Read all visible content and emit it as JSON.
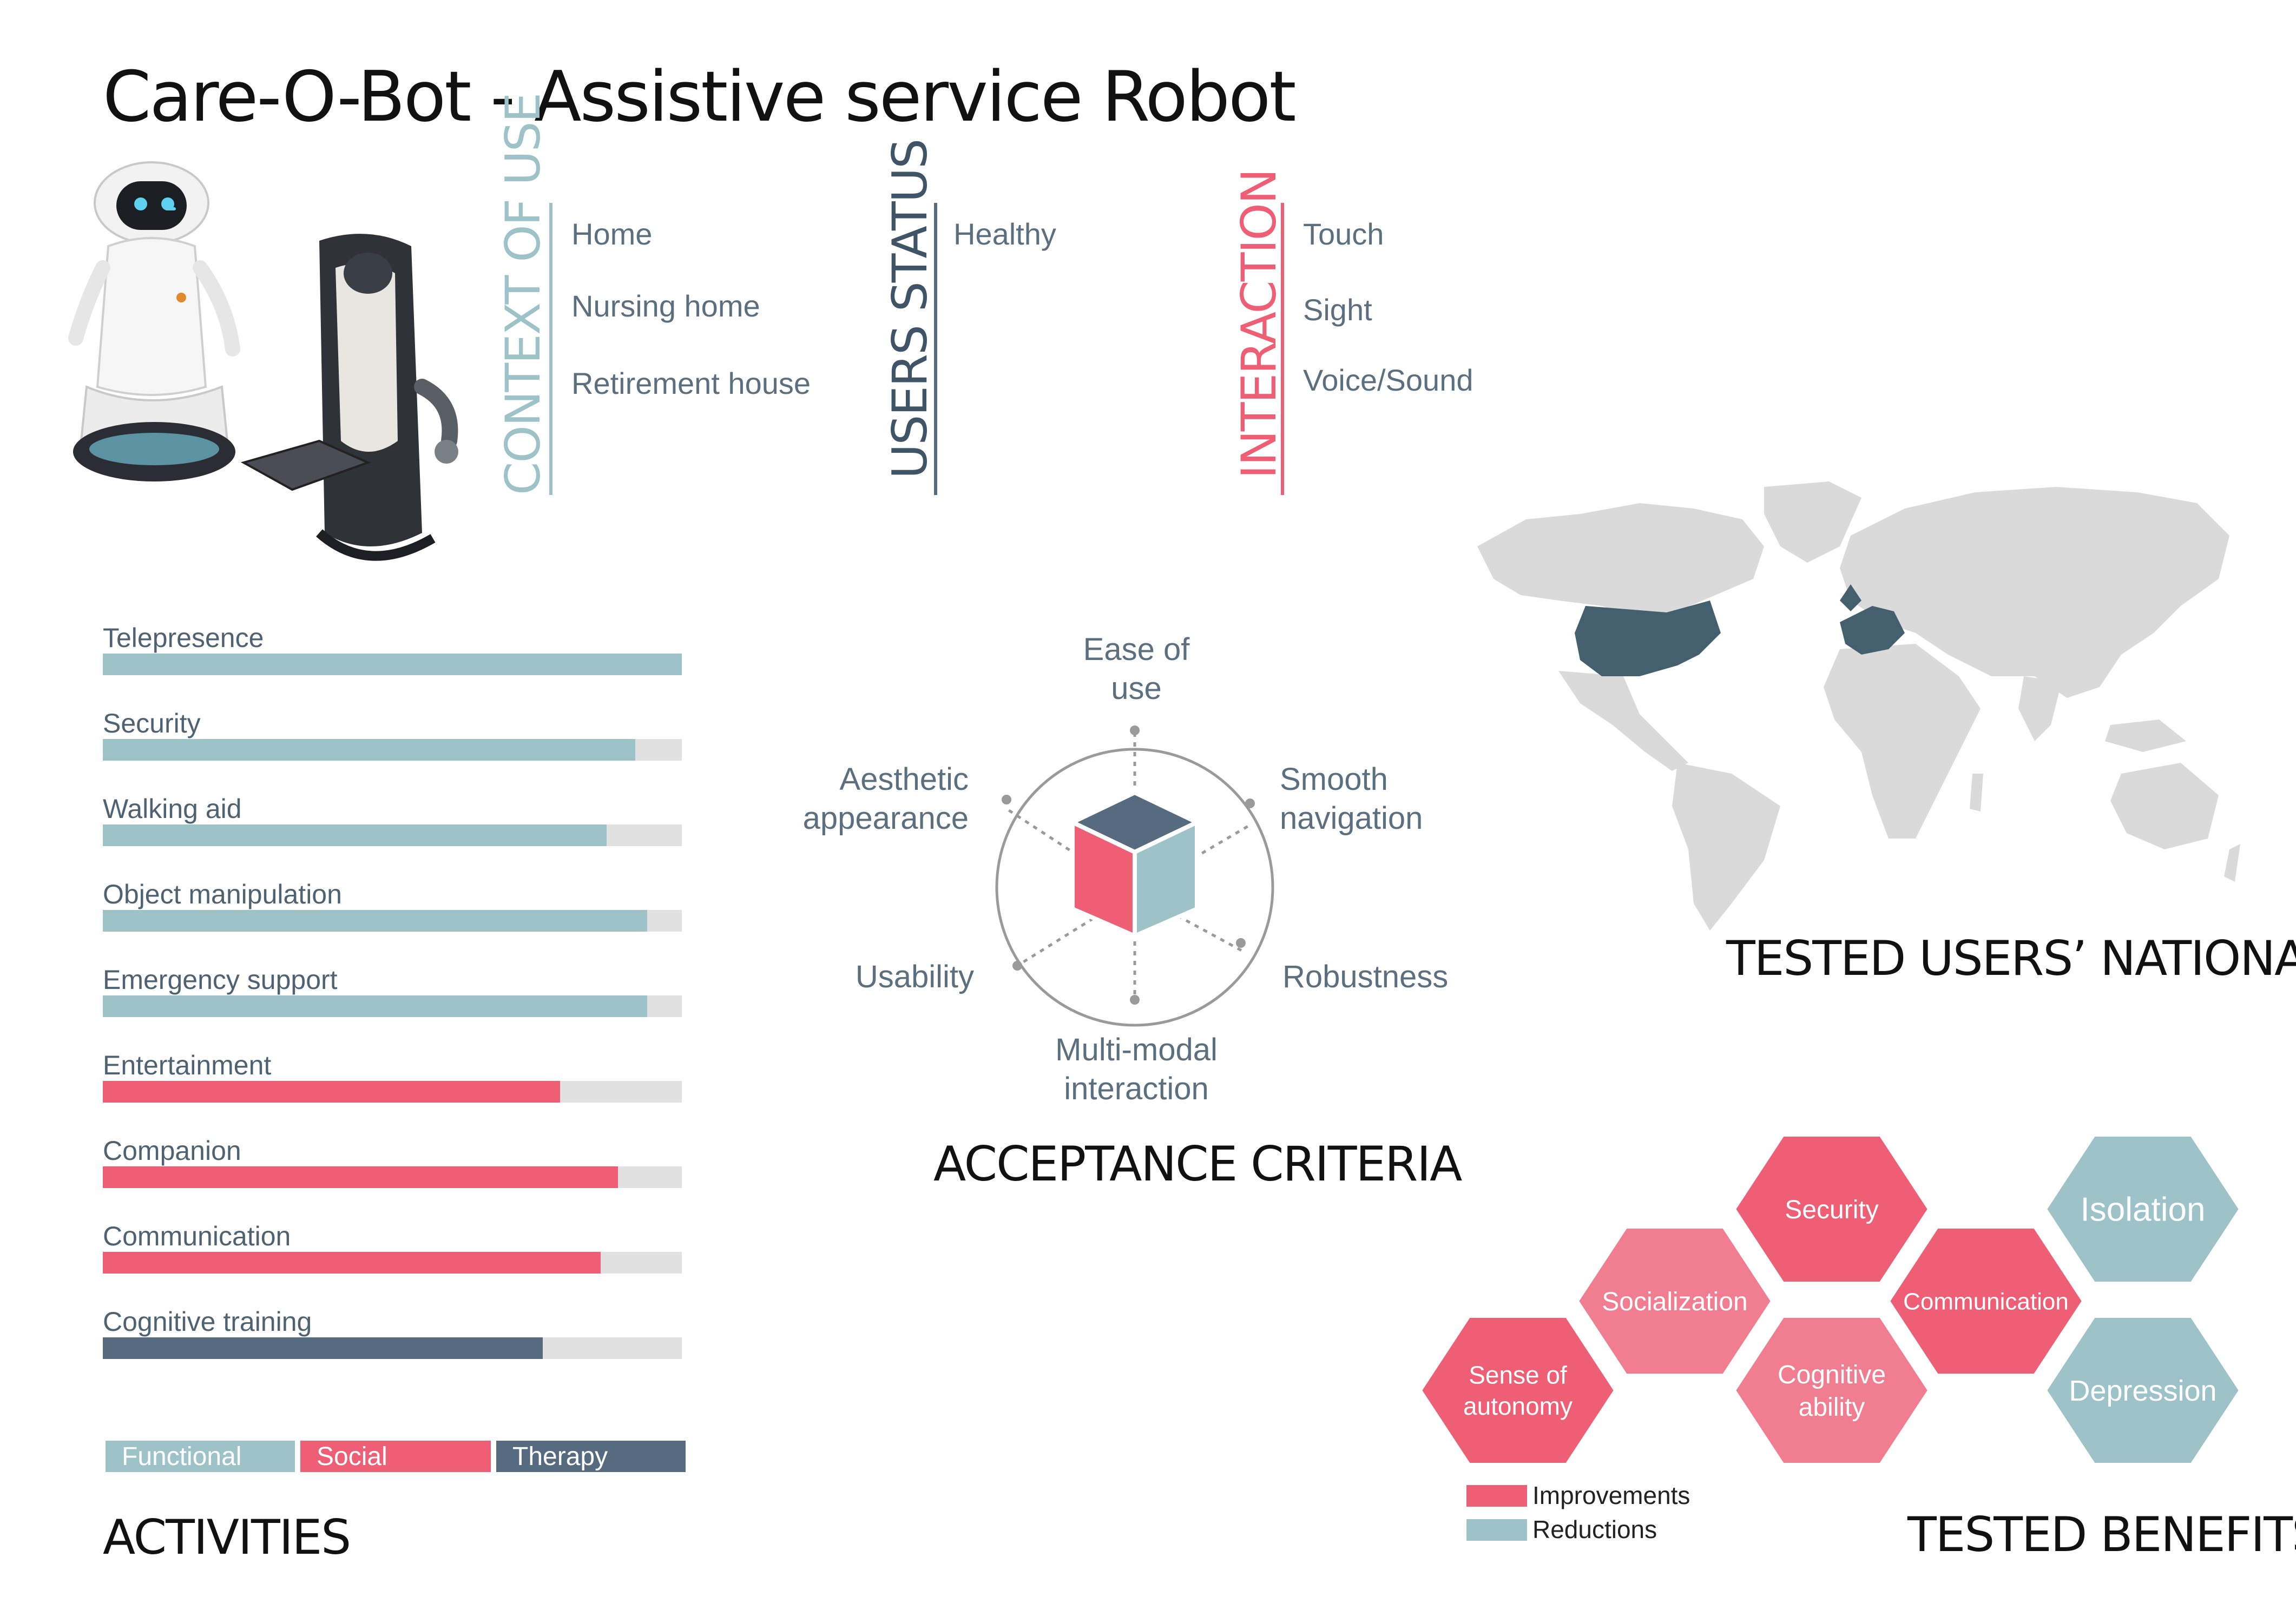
{
  "title": "Care-O-Bot - Assistive service Robot",
  "colors": {
    "functional": "#9dc3c8",
    "social": "#ee5f76",
    "therapy": "#566b7f",
    "social_light": "#f07d90",
    "track": "#e1e1e1",
    "map_land": "#dadada",
    "map_highlight": "#44606f"
  },
  "context": {
    "context_of_use": {
      "label": "CONTEXT OF USE",
      "items": [
        "Home",
        "Nursing home",
        "Retirement house"
      ]
    },
    "users_status": {
      "label": "USERS STATUS",
      "items": [
        "Healthy"
      ]
    },
    "interaction": {
      "label": "INTERACTION",
      "items": [
        "Touch",
        "Sight",
        "Voice/Sound"
      ]
    }
  },
  "activities": {
    "title": "ACTIVITIES",
    "legend": [
      "Functional",
      "Social",
      "Therapy"
    ]
  },
  "acceptance": {
    "title": "ACCEPTANCE CRITERIA",
    "axes": [
      "Ease of\nuse",
      "Smooth\nnavigation",
      "Robustness",
      "Multi-modal\ninteraction",
      "Usability",
      "Aesthetic\nappearance"
    ]
  },
  "nationality": {
    "title": "TESTED USERS’ NATIONALITY",
    "highlighted": [
      "United States",
      "Europe"
    ]
  },
  "benefits": {
    "title": "TESTED BENEFITS",
    "hexes": [
      {
        "label": "Sense of\nautonomy",
        "kind": "improvement"
      },
      {
        "label": "Socialization",
        "kind": "improvement"
      },
      {
        "label": "Security",
        "kind": "improvement"
      },
      {
        "label": "Cognitive\nability",
        "kind": "improvement"
      },
      {
        "label": "Communication",
        "kind": "improvement"
      },
      {
        "label": "Isolation",
        "kind": "reduction"
      },
      {
        "label": "Depression",
        "kind": "reduction"
      }
    ],
    "legend": [
      "Improvements",
      "Reductions"
    ]
  },
  "chart_data": {
    "type": "bar",
    "orientation": "horizontal",
    "categories": [
      "Telepresence",
      "Security",
      "Walking aid",
      "Object manipulation",
      "Emergency support",
      "Entertainment",
      "Companion",
      "Communication",
      "Cognitive training"
    ],
    "values": [
      1.0,
      0.92,
      0.87,
      0.94,
      0.94,
      0.79,
      0.89,
      0.86,
      0.76
    ],
    "groups": [
      "Functional",
      "Functional",
      "Functional",
      "Functional",
      "Functional",
      "Social",
      "Social",
      "Social",
      "Therapy"
    ],
    "xlim": [
      0,
      1
    ],
    "title": "ACTIVITIES"
  }
}
